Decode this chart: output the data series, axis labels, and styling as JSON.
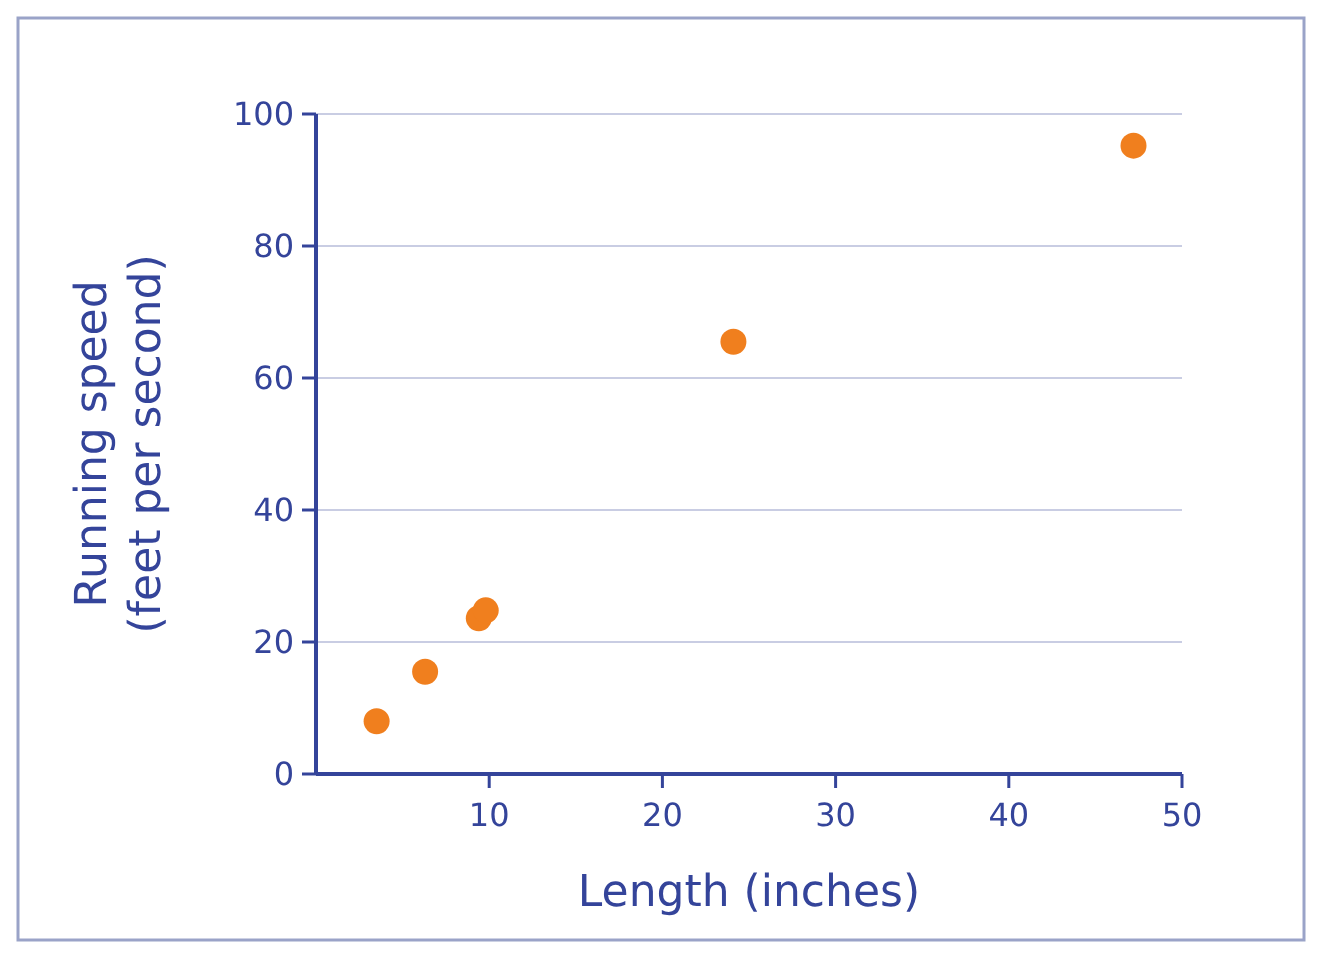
{
  "chart_data": {
    "type": "scatter",
    "xlabel": "Length (inches)",
    "ylabel": "Running speed\n(feet per second)",
    "x": [
      3.5,
      6.3,
      9.4,
      9.8,
      24.1,
      47.2
    ],
    "series": [
      {
        "color": "#f07f1e",
        "values": [
          8,
          15.5,
          23.6,
          24.8,
          65.5,
          95.2
        ]
      }
    ],
    "xlim": [
      0,
      50
    ],
    "xticks": [
      10,
      20,
      30,
      40,
      50
    ],
    "ylim": [
      0,
      100
    ],
    "yticks": [
      0,
      20,
      40,
      60,
      80,
      100
    ],
    "grid": "y",
    "marker": "circle"
  }
}
